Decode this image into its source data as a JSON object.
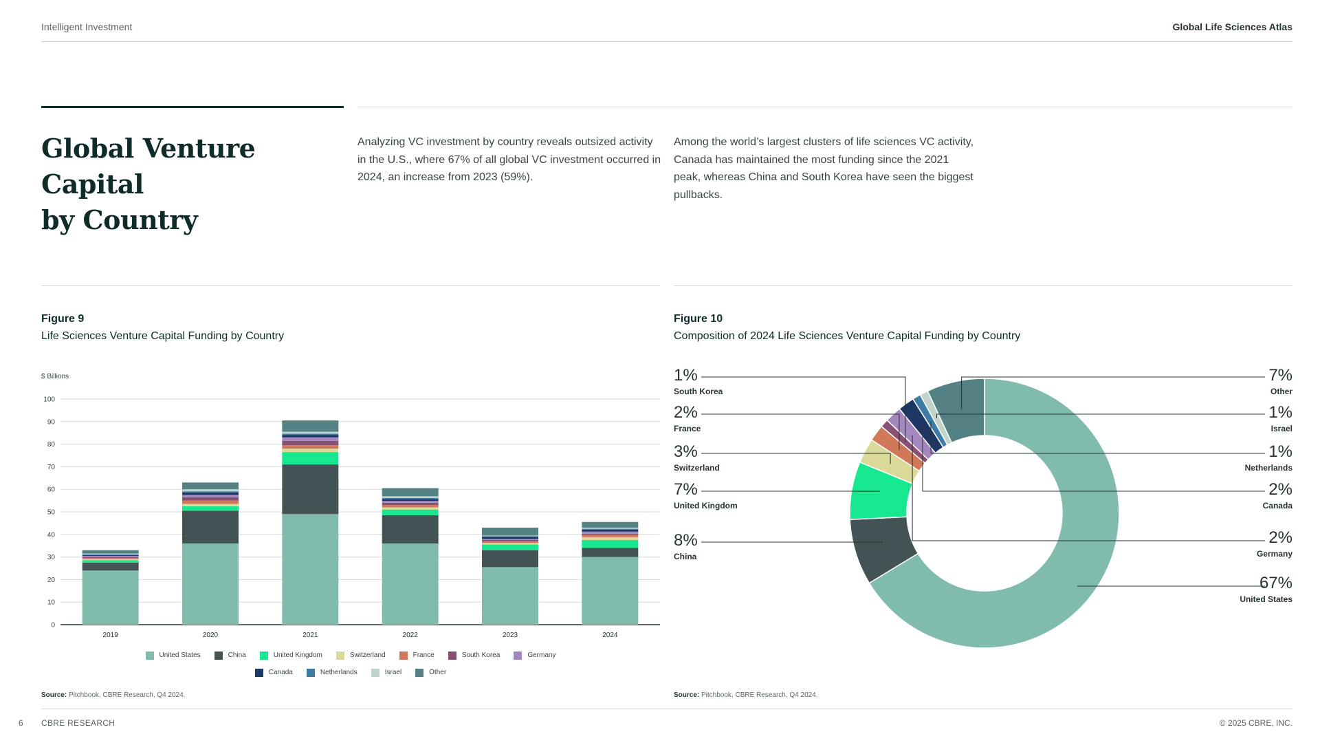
{
  "header": {
    "left": "Intelligent Investment",
    "right": "Global Life Sciences Atlas"
  },
  "main": {
    "title_line1": "Global Venture Capital",
    "title_line2": "by Country",
    "para1": "Analyzing VC investment by country reveals outsized activity in the U.S., where 67% of all global VC investment occurred in 2024, an increase from 2023 (59%).",
    "para2": "Among the world’s largest clusters of life sciences VC activity, Canada has maintained the most funding since the 2021 peak, whereas China and South Korea have seen the biggest pullbacks."
  },
  "fig9": {
    "num": "Figure 9",
    "title": "Life Sciences Venture Capital Funding by Country",
    "source_label": "Source:",
    "source_text": " Pitchbook, CBRE Research, Q4 2024."
  },
  "fig10": {
    "num": "Figure 10",
    "title": "Composition of 2024 Life Sciences Venture Capital Funding by Country",
    "source_label": "Source:",
    "source_text": " Pitchbook, CBRE Research, Q4 2024."
  },
  "footer": {
    "page": "6",
    "left": "CBRE RESEARCH",
    "right": "© 2025 CBRE, INC."
  },
  "colors": {
    "United States": "#80bbad",
    "China": "#435254",
    "United Kingdom": "#17e88f",
    "Switzerland": "#dbd99a",
    "France": "#d2785a",
    "South Korea": "#885073",
    "Germany": "#a388bf",
    "Canada": "#1f3765",
    "Netherlands": "#3e7ca6",
    "Israel": "#c0d4cb",
    "Other": "#538184"
  },
  "chart_data": [
    {
      "type": "bar",
      "stacked": true,
      "ylabel": "$ Billions",
      "ylim": [
        0,
        100
      ],
      "yticks": [
        0,
        10,
        20,
        30,
        40,
        50,
        60,
        70,
        80,
        90,
        100
      ],
      "grid": true,
      "categories": [
        "2019",
        "2020",
        "2021",
        "2022",
        "2023",
        "2024"
      ],
      "series": [
        {
          "name": "United States",
          "values": [
            24,
            36,
            49,
            36,
            25.5,
            30
          ]
        },
        {
          "name": "China",
          "values": [
            3.5,
            14.5,
            22,
            12.5,
            7.5,
            4
          ]
        },
        {
          "name": "United Kingdom",
          "values": [
            1,
            2,
            5.5,
            2.5,
            2.5,
            3.5
          ]
        },
        {
          "name": "Switzerland",
          "values": [
            0.5,
            1,
            1.5,
            1,
            0.7,
            1.3
          ]
        },
        {
          "name": "France",
          "values": [
            0.5,
            1.5,
            1.5,
            1,
            0.8,
            1
          ]
        },
        {
          "name": "South Korea",
          "values": [
            0.5,
            1.5,
            2,
            1,
            0.5,
            0.5
          ]
        },
        {
          "name": "Germany",
          "values": [
            0.5,
            1,
            1.5,
            0.8,
            0.5,
            0.9
          ]
        },
        {
          "name": "Canada",
          "values": [
            0.4,
            1,
            1,
            0.9,
            0.9,
            0.9
          ]
        },
        {
          "name": "Netherlands",
          "values": [
            0.2,
            0.6,
            0.6,
            0.4,
            0.3,
            0.4
          ]
        },
        {
          "name": "Israel",
          "values": [
            0.4,
            0.9,
            0.9,
            0.8,
            0.3,
            0.5
          ]
        },
        {
          "name": "Other",
          "values": [
            1.5,
            3,
            5,
            3.6,
            3.5,
            2.5
          ]
        }
      ],
      "legend_position": "bottom"
    },
    {
      "type": "pie",
      "donut": true,
      "slices": [
        {
          "name": "United States",
          "value": 67,
          "label": "67%"
        },
        {
          "name": "China",
          "value": 8,
          "label": "8%"
        },
        {
          "name": "United Kingdom",
          "value": 7,
          "label": "7%"
        },
        {
          "name": "Switzerland",
          "value": 3,
          "label": "3%"
        },
        {
          "name": "France",
          "value": 2,
          "label": "2%"
        },
        {
          "name": "South Korea",
          "value": 1,
          "label": "1%"
        },
        {
          "name": "Germany",
          "value": 2,
          "label": "2%"
        },
        {
          "name": "Canada",
          "value": 2,
          "label": "2%"
        },
        {
          "name": "Netherlands",
          "value": 1,
          "label": "1%"
        },
        {
          "name": "Israel",
          "value": 1,
          "label": "1%"
        },
        {
          "name": "Other",
          "value": 7,
          "label": "7%"
        }
      ]
    }
  ]
}
